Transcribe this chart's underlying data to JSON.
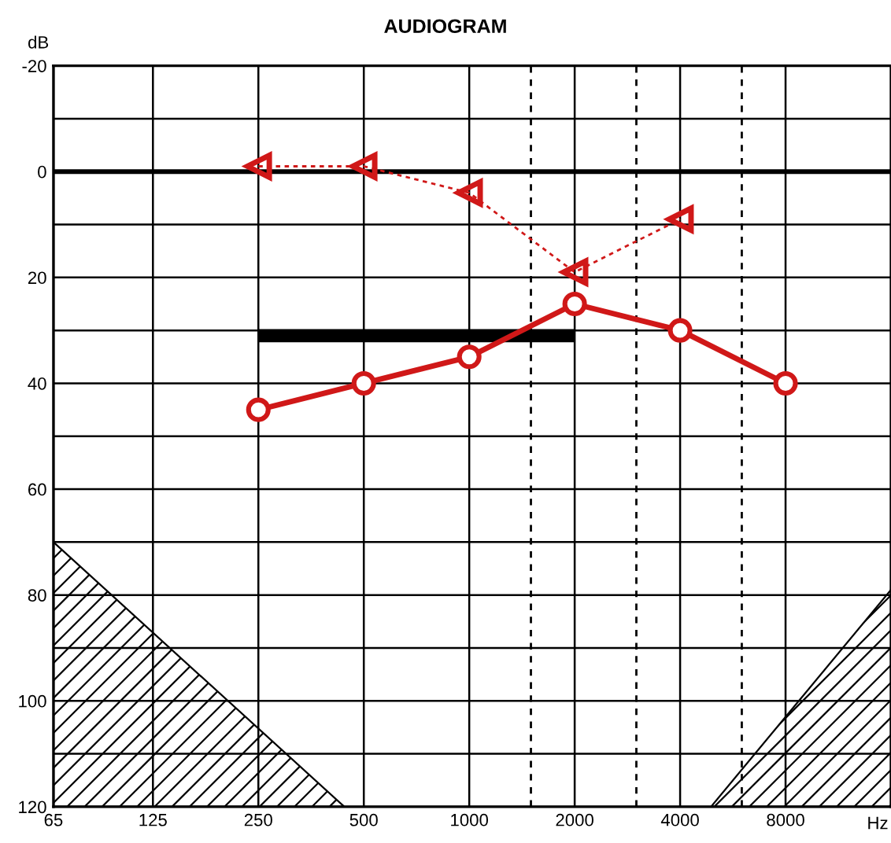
{
  "chart_data": {
    "type": "line",
    "title": "AUDIOGRAM",
    "xlabel": "Hz",
    "ylabel": "dB",
    "log": "x",
    "grid": true,
    "legend": false,
    "xlim": [
      65,
      16000
    ],
    "xticks": [
      65,
      125,
      250,
      500,
      1000,
      2000,
      4000,
      8000
    ],
    "ylim": [
      120,
      -20
    ],
    "yticks": [
      -20,
      {
        "value": -10,
        "label": null
      },
      0,
      {
        "value": 10,
        "label": null
      },
      20,
      {
        "value": 30,
        "label": null
      },
      40,
      {
        "value": 50,
        "label": null
      },
      60,
      {
        "value": 70,
        "label": null
      },
      80,
      {
        "value": 90,
        "label": null
      },
      100,
      {
        "value": 110,
        "label": null
      },
      120
    ],
    "ref_lines": [
      {
        "axis": "y",
        "value": 0,
        "color": "#000000",
        "line_style": "solid"
      },
      {
        "axis": "x",
        "value": 1500,
        "color": "#000000",
        "line_style": "dashed"
      },
      {
        "axis": "x",
        "value": 3000,
        "color": "#000000",
        "line_style": "dashed"
      },
      {
        "axis": "x",
        "value": 6000,
        "color": "#000000",
        "line_style": "dashed"
      }
    ],
    "series": [
      {
        "type": "area",
        "color": "#000000",
        "x": [
          65,
          440
        ],
        "values": [
          70,
          120
        ]
      },
      {
        "type": "area",
        "color": "#000000",
        "x": [
          4900,
          16000
        ],
        "values": [
          120,
          79
        ]
      },
      {
        "color": "#000000",
        "marker": "none",
        "line_style": "solid",
        "x": [
          250,
          2000
        ],
        "values": [
          31,
          31
        ]
      },
      {
        "color": "#d01818",
        "marker": "triangle",
        "line_style": "dotted",
        "x": [
          250,
          500,
          1000,
          2000,
          4000
        ],
        "values": [
          -1,
          -1,
          4,
          19,
          9
        ]
      },
      {
        "color": "#d01818",
        "marker": "circle",
        "line_style": "solid",
        "x": [
          250,
          500,
          1000,
          2000,
          4000,
          8000
        ],
        "values": [
          45,
          40,
          35,
          25,
          30,
          40
        ]
      }
    ]
  }
}
